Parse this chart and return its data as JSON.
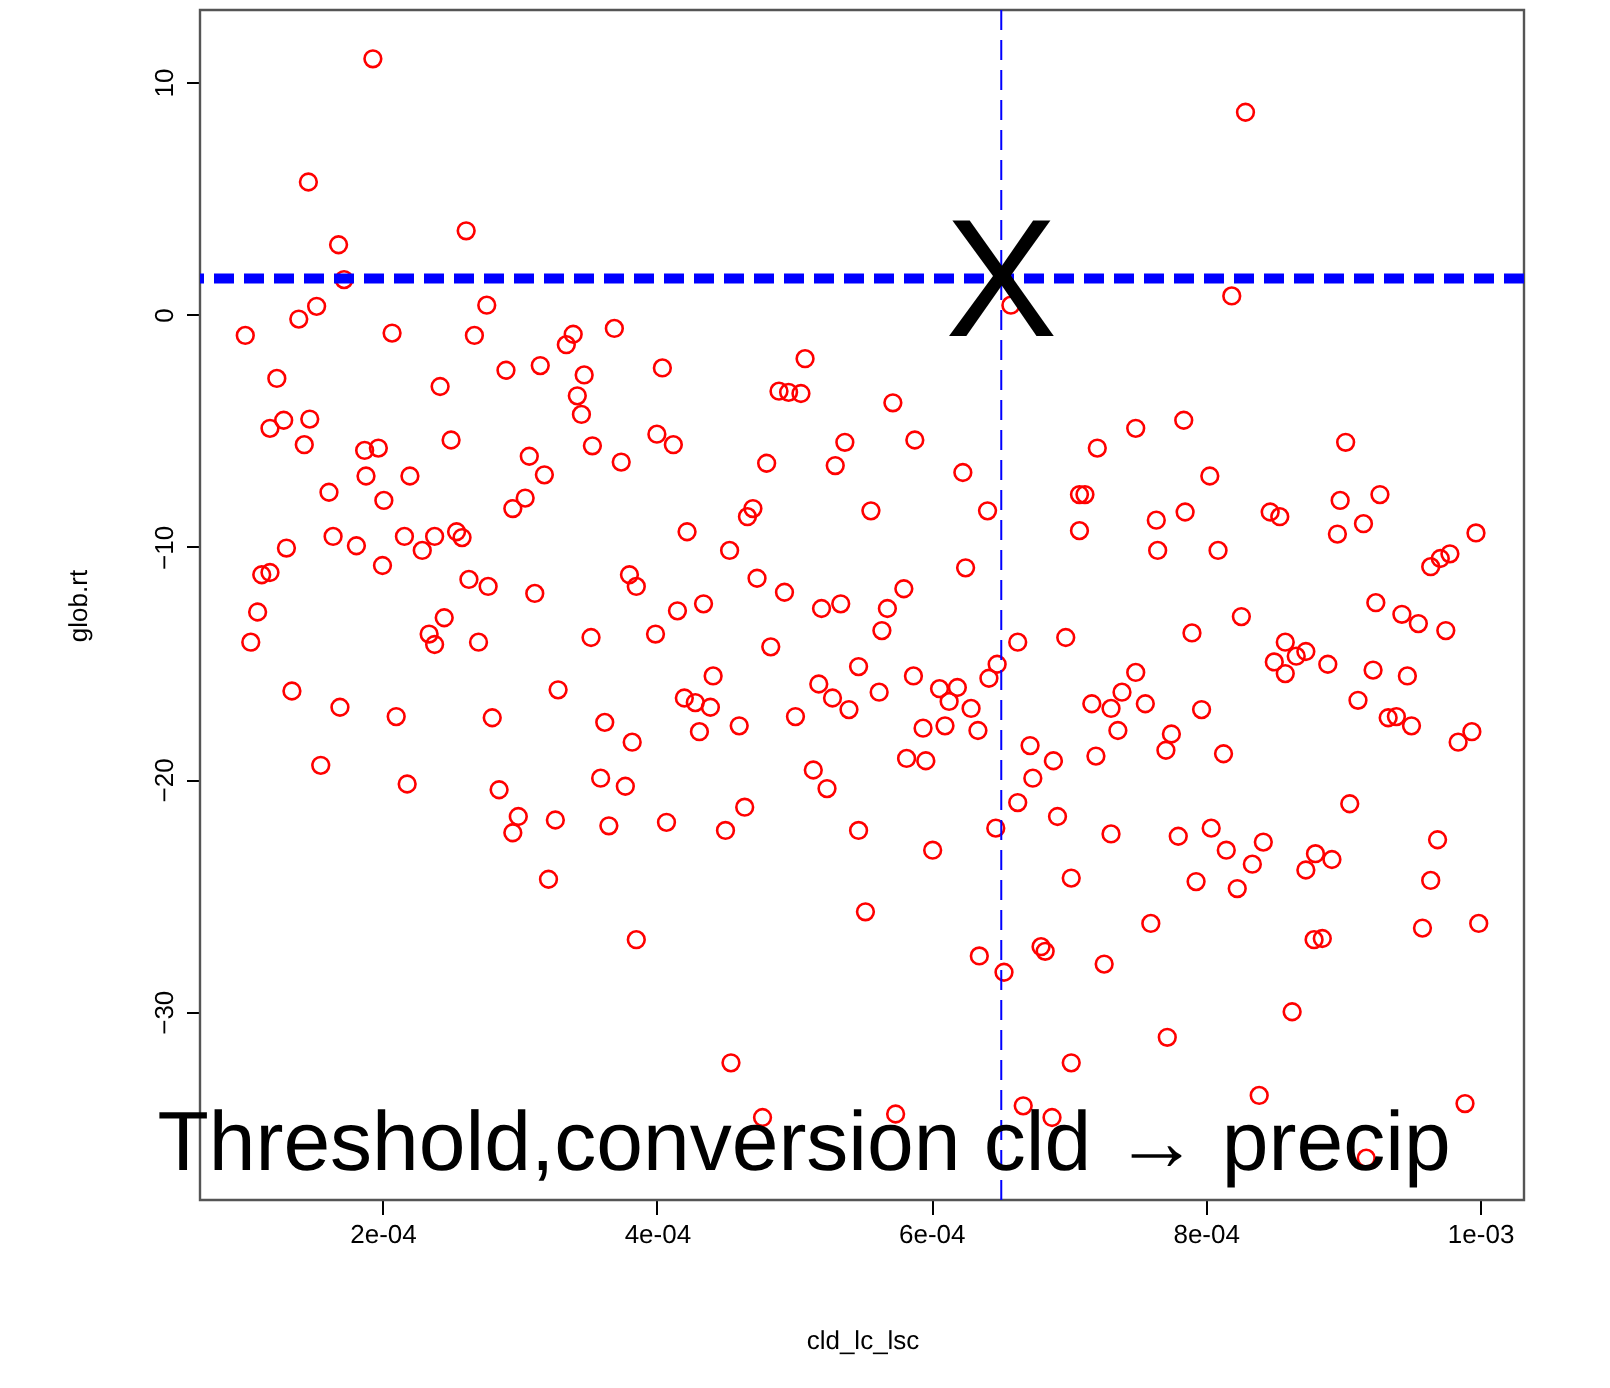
{
  "chart_data": {
    "type": "scatter",
    "xlabel": "cld_lc_lsc",
    "ylabel": "glob.rt",
    "xlim": [
      6.7e-05,
      0.001032
    ],
    "ylim": [
      -38.1,
      13.1
    ],
    "xticks": [
      {
        "value": 0.0002,
        "label": "2e-04"
      },
      {
        "value": 0.0004,
        "label": "4e-04"
      },
      {
        "value": 0.0006,
        "label": "6e-04"
      },
      {
        "value": 0.0008,
        "label": "8e-04"
      },
      {
        "value": 0.001,
        "label": "1e-03"
      }
    ],
    "yticks": [
      -30,
      -20,
      -10,
      0,
      10
    ],
    "grid": false,
    "marker": "circle",
    "ref_lines": [
      {
        "axis": "y",
        "value": 1.55,
        "color": "#0000ff",
        "line_style": "dashed"
      },
      {
        "axis": "x",
        "value": 0.000651,
        "color": "#0000ff",
        "line_style": "dashed"
      }
    ],
    "annotations": [
      {
        "text": "X",
        "x": 0.000651,
        "y": 1.55
      },
      "Threshold,conversion cld → precip"
    ],
    "series": [
      {
        "color": "#ff0000",
        "x": [
          0.000193,
          0.000146,
          0.000168,
          0.000261,
          0.000172,
          0.000829,
          0.000819,
          0.000658,
          0.0001,
          0.000139,
          0.000152,
          0.000207,
          0.000276,
          0.000267,
          0.000123,
          0.000242,
          0.00029,
          0.000315,
          0.000339,
          0.000334,
          0.000347,
          0.000369,
          0.000342,
          0.000345,
          0.000128,
          0.000118,
          0.000147,
          0.000143,
          0.000187,
          0.000197,
          0.00025,
          0.000353,
          0.000374,
          0.000188,
          0.00022,
          0.000307,
          0.000318,
          0.000161,
          0.000201,
          0.000295,
          0.000304,
          0.000164,
          0.000181,
          0.000216,
          0.000229,
          0.000238,
          0.000254,
          0.000258,
          0.00013,
          0.0002,
          0.000112,
          0.000118,
          0.000263,
          0.000277,
          0.000311,
          0.00038,
          0.000385,
          0.000109,
          0.000245,
          0.000104,
          0.000234,
          0.000238,
          0.00027,
          0.000352,
          0.000134,
          0.000169,
          0.00021,
          0.00028,
          0.000328,
          0.000362,
          0.000382,
          0.000155,
          0.000218,
          0.000285,
          0.000299,
          0.000295,
          0.000326,
          0.000359,
          0.000377,
          0.000365,
          0.000321,
          0.000385,
          0.000404,
          0.000508,
          0.000489,
          0.000496,
          0.000505,
          0.000572,
          0.0004,
          0.000412,
          0.000537,
          0.000588,
          0.00048,
          0.00053,
          0.000623,
          0.000422,
          0.00047,
          0.000466,
          0.000556,
          0.000641,
          0.000453,
          0.000625,
          0.000473,
          0.000493,
          0.00058,
          0.000534,
          0.00052,
          0.000568,
          0.000415,
          0.000434,
          0.000708,
          0.000708,
          0.000399,
          0.000483,
          0.000564,
          0.000441,
          0.00042,
          0.000428,
          0.000439,
          0.000431,
          0.00046,
          0.000501,
          0.000518,
          0.000528,
          0.00054,
          0.000547,
          0.000562,
          0.000587,
          0.000606,
          0.000619,
          0.000613,
          0.000629,
          0.000642,
          0.000648,
          0.000594,
          0.00061,
          0.000634,
          0.000663,
          0.000698,
          0.000582,
          0.000596,
          0.000514,
          0.000524,
          0.000407,
          0.00045,
          0.000464,
          0.000547,
          0.000601,
          0.000647,
          0.000672,
          0.000689,
          0.000674,
          0.000663,
          0.000692,
          0.000702,
          0.000552,
          0.000635,
          0.000653,
          0.00068,
          0.000683,
          0.000454,
          0.000702,
          0.000477,
          0.000574,
          0.000667,
          0.000688,
          0.000721,
          0.000749,
          0.000784,
          0.000902,
          0.000712,
          0.000803,
          0.000764,
          0.000785,
          0.000765,
          0.000809,
          0.000847,
          0.000854,
          0.000898,
          0.000927,
          0.000896,
          0.000915,
          0.000997,
          0.000964,
          0.000971,
          0.000978,
          0.000924,
          0.000943,
          0.000955,
          0.000826,
          0.00079,
          0.000975,
          0.000749,
          0.000739,
          0.000717,
          0.000731,
          0.000756,
          0.000736,
          0.000775,
          0.000771,
          0.00072,
          0.000797,
          0.000813,
          0.000858,
          0.00085,
          0.000866,
          0.000873,
          0.000858,
          0.000889,
          0.000922,
          0.000947,
          0.000911,
          0.000933,
          0.000939,
          0.00095,
          0.000984,
          0.000994,
          0.000905,
          0.000731,
          0.00078,
          0.000804,
          0.000815,
          0.000842,
          0.000834,
          0.000793,
          0.000823,
          0.000873,
          0.00088,
          0.000892,
          0.000969,
          0.000964,
          0.00076,
          0.000958,
          0.000999,
          0.000879,
          0.000885,
          0.000726,
          0.000863,
          0.000772,
          0.000839,
          0.000989,
          0.000917
        ],
        "values": [
          11.0,
          5.7,
          3.0,
          3.6,
          1.5,
          8.7,
          0.8,
          0.4,
          -0.9,
          -0.2,
          0.35,
          -0.8,
          0.4,
          -0.9,
          -2.75,
          -3.1,
          -2.4,
          -2.2,
          -0.85,
          -1.3,
          -2.6,
          -0.6,
          -3.5,
          -4.3,
          -4.55,
          -4.9,
          -4.5,
          -5.6,
          -5.85,
          -5.75,
          -5.4,
          -5.65,
          -6.35,
          -6.95,
          -6.95,
          -6.1,
          -6.9,
          -7.65,
          -8.0,
          -8.35,
          -7.9,
          -9.55,
          -9.95,
          -9.55,
          -10.15,
          -9.55,
          -9.35,
          -9.6,
          -10.05,
          -10.8,
          -11.2,
          -11.1,
          -11.4,
          -11.7,
          -12.0,
          -11.2,
          -11.7,
          -12.8,
          -13.05,
          -14.1,
          -13.75,
          -14.2,
          -14.1,
          -13.9,
          -16.2,
          -16.9,
          -17.3,
          -17.35,
          -16.15,
          -17.55,
          -18.4,
          -19.4,
          -20.2,
          -20.45,
          -21.6,
          -22.3,
          -21.75,
          -19.95,
          -20.3,
          -22.0,
          -24.3,
          -26.9,
          -2.3,
          -1.9,
          -3.3,
          -3.35,
          -3.4,
          -3.8,
          -5.15,
          -5.6,
          -5.5,
          -5.4,
          -6.4,
          -6.5,
          -6.8,
          -9.35,
          -8.35,
          -8.7,
          -8.45,
          -8.45,
          -10.15,
          -10.9,
          -11.35,
          -11.95,
          -11.8,
          -12.45,
          -12.65,
          -12.65,
          -12.75,
          -12.45,
          -7.75,
          -9.3,
          -13.75,
          -14.3,
          -13.6,
          -15.55,
          -16.5,
          -16.7,
          -16.9,
          -17.95,
          -17.7,
          -17.3,
          -15.9,
          -16.5,
          -17.0,
          -15.15,
          -16.25,
          -15.55,
          -16.1,
          -16.05,
          -16.65,
          -16.95,
          -15.65,
          -15.05,
          -17.8,
          -17.7,
          -17.9,
          -14.1,
          -13.9,
          -19.1,
          -19.2,
          -19.6,
          -20.4,
          -21.85,
          -22.2,
          -21.2,
          -22.2,
          -23.05,
          -22.1,
          -18.55,
          -19.2,
          -19.95,
          -21.0,
          -21.6,
          -24.25,
          -25.7,
          -27.6,
          -28.3,
          -27.2,
          -27.4,
          -32.2,
          -32.2,
          -34.55,
          -34.4,
          -34.05,
          -34.55,
          -5.75,
          -4.9,
          -4.55,
          -5.5,
          -7.75,
          -6.95,
          -8.85,
          -8.5,
          -10.15,
          -10.15,
          -8.5,
          -8.7,
          -8.0,
          -7.75,
          -9.45,
          -9.0,
          -9.4,
          -10.85,
          -10.5,
          -10.3,
          -12.4,
          -12.9,
          -13.3,
          -13.0,
          -13.7,
          -13.6,
          -15.4,
          -16.25,
          -16.75,
          -16.95,
          -16.75,
          -17.9,
          -18.05,
          -18.75,
          -19.0,
          -17.0,
          -18.9,
          -14.1,
          -14.95,
          -14.7,
          -14.5,
          -15.45,
          -15.05,
          -15.3,
          -15.55,
          -16.6,
          -17.35,
          -17.3,
          -17.7,
          -18.4,
          -17.95,
          -21.05,
          -22.35,
          -22.45,
          -22.1,
          -23.05,
          -22.7,
          -23.65,
          -24.4,
          -24.7,
          -23.9,
          -23.2,
          -23.45,
          -22.6,
          -24.35,
          -26.2,
          -26.4,
          -26.2,
          -26.9,
          -26.85,
          -27.95,
          -30.0,
          -31.1,
          -33.6,
          -33.95,
          -36.3
        ]
      }
    ]
  }
}
